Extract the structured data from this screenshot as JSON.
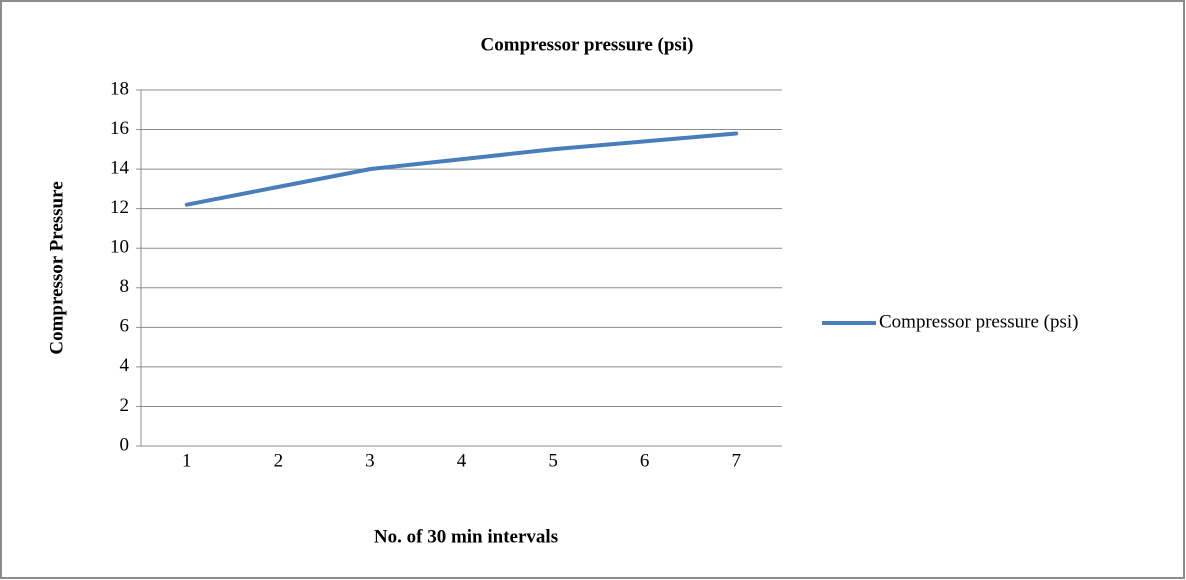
{
  "chart_data": {
    "type": "line",
    "title": "Compressor pressure  (psi)",
    "x_label": "No. of 30 min intervals",
    "y_label": "Compressor Pressure",
    "categories": [
      "1",
      "2",
      "3",
      "4",
      "5",
      "6",
      "7"
    ],
    "series": [
      {
        "name": "Compressor pressure  (psi)",
        "color": "#4a7ebb",
        "values": [
          12.2,
          13.1,
          14.0,
          14.5,
          15.0,
          15.4,
          15.8
        ]
      }
    ],
    "ylim": [
      0,
      18
    ],
    "yticks": [
      0,
      2,
      4,
      6,
      8,
      10,
      12,
      14,
      16,
      18
    ],
    "grid": true,
    "legend": "right"
  }
}
